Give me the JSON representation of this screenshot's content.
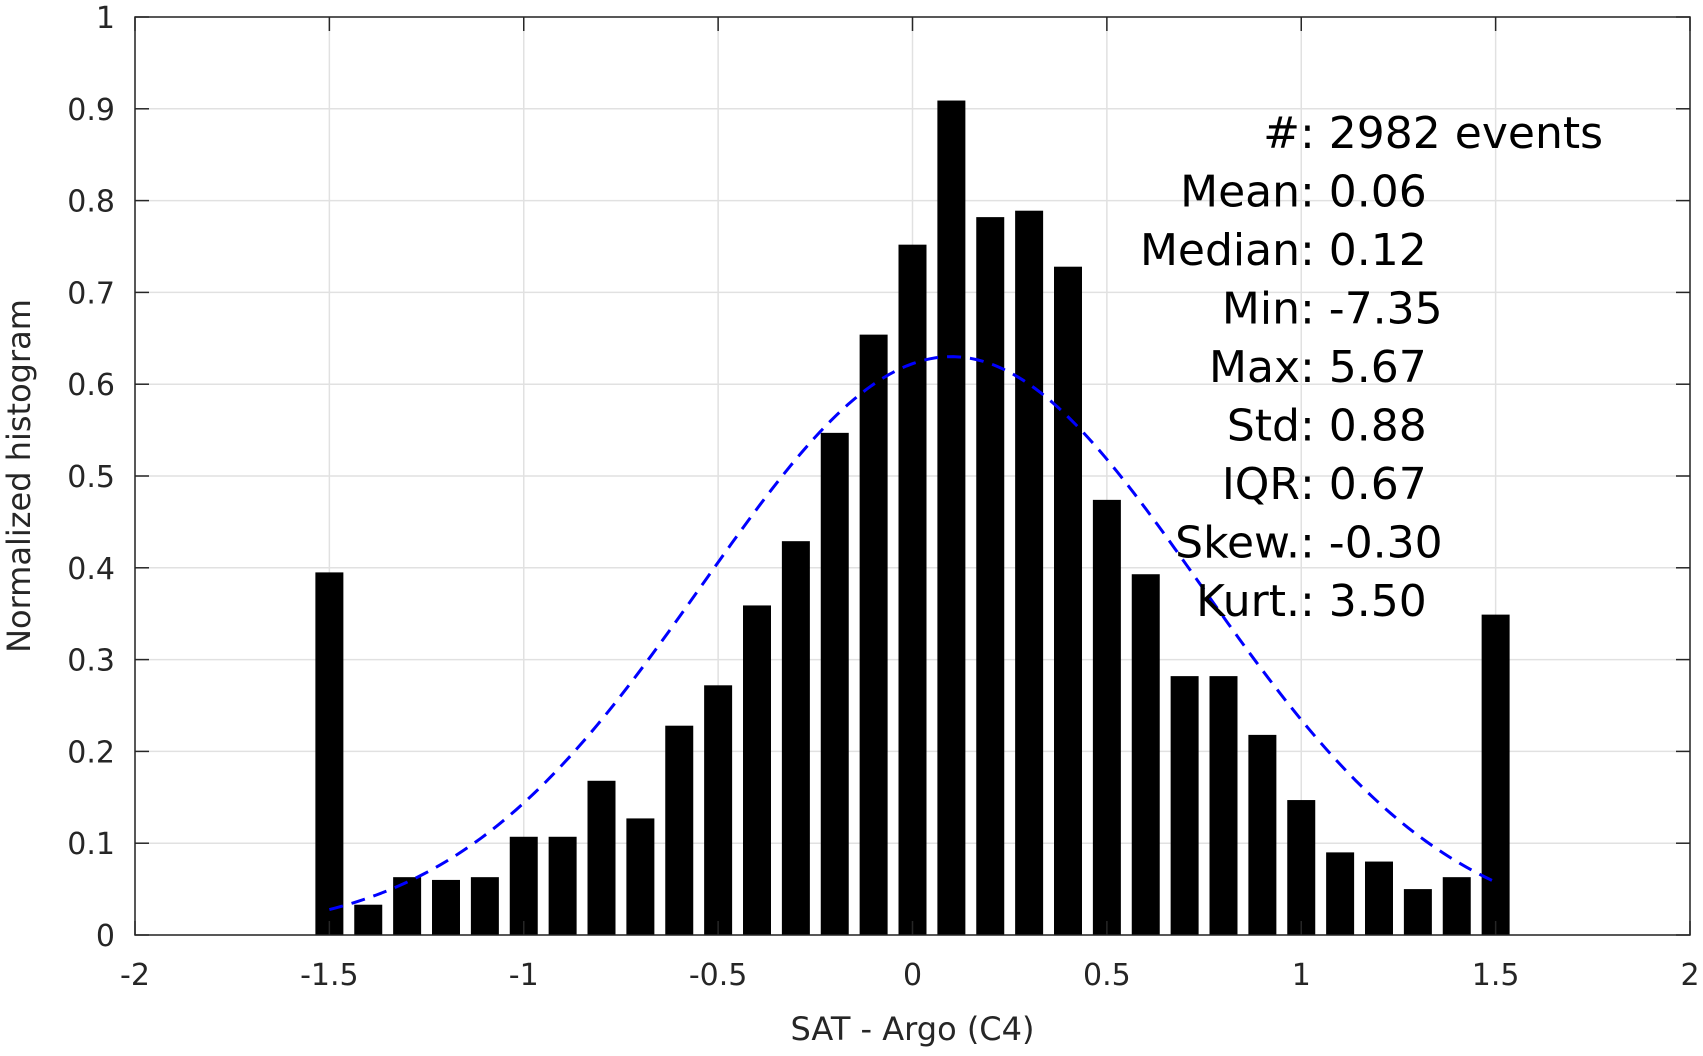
{
  "chart_data": {
    "type": "bar",
    "xlabel": "SAT - Argo (C4)",
    "ylabel": "Normalized histogram",
    "xlim": [
      -2,
      2
    ],
    "ylim": [
      0,
      1
    ],
    "xticks": [
      -2,
      -1.5,
      -1,
      -0.5,
      0,
      0.5,
      1,
      1.5,
      2
    ],
    "xtick_labels": [
      "-2",
      "-1.5",
      "-1",
      "-0.5",
      "0",
      "0.5",
      "1",
      "1.5",
      "2"
    ],
    "yticks": [
      0,
      0.1,
      0.2,
      0.3,
      0.4,
      0.5,
      0.6,
      0.7,
      0.8,
      0.9,
      1
    ],
    "ytick_labels": [
      "0",
      "0.1",
      "0.2",
      "0.3",
      "0.4",
      "0.5",
      "0.6",
      "0.7",
      "0.8",
      "0.9",
      "1"
    ],
    "grid": true,
    "bin_width": 0.1,
    "bar_color": "#000000",
    "bins": [
      -1.5,
      -1.4,
      -1.3,
      -1.2,
      -1.1,
      -1.0,
      -0.9,
      -0.8,
      -0.7,
      -0.6,
      -0.5,
      -0.4,
      -0.3,
      -0.2,
      -0.1,
      0.0,
      0.1,
      0.2,
      0.3,
      0.4,
      0.5,
      0.6,
      0.7,
      0.8,
      0.9,
      1.0,
      1.1,
      1.2,
      1.3,
      1.4,
      1.5
    ],
    "values": [
      0.395,
      0.033,
      0.063,
      0.06,
      0.063,
      0.107,
      0.107,
      0.168,
      0.127,
      0.228,
      0.272,
      0.359,
      0.429,
      0.547,
      0.654,
      0.752,
      0.909,
      0.782,
      0.789,
      0.728,
      0.474,
      0.393,
      0.282,
      0.282,
      0.218,
      0.147,
      0.09,
      0.08,
      0.05,
      0.063,
      0.349
    ],
    "fit": {
      "type": "normal",
      "color": "#0000ff",
      "style": "dashed",
      "x_range": [
        -1.5,
        1.5
      ],
      "mean": 0.1,
      "std": 0.64,
      "peak": 0.63
    },
    "stats": [
      {
        "label": "#",
        "value": ": 2982 events"
      },
      {
        "label": "Mean",
        "value": ": 0.06"
      },
      {
        "label": "Median",
        "value": ": 0.12"
      },
      {
        "label": "Min",
        "value": ": -7.35"
      },
      {
        "label": "Max",
        "value": ": 5.67"
      },
      {
        "label": "Std",
        "value": ": 0.88"
      },
      {
        "label": "IQR",
        "value": ": 0.67"
      },
      {
        "label": "Skew.",
        "value": ": -0.30"
      },
      {
        "label": "Kurt.",
        "value": ": 3.50"
      }
    ]
  }
}
